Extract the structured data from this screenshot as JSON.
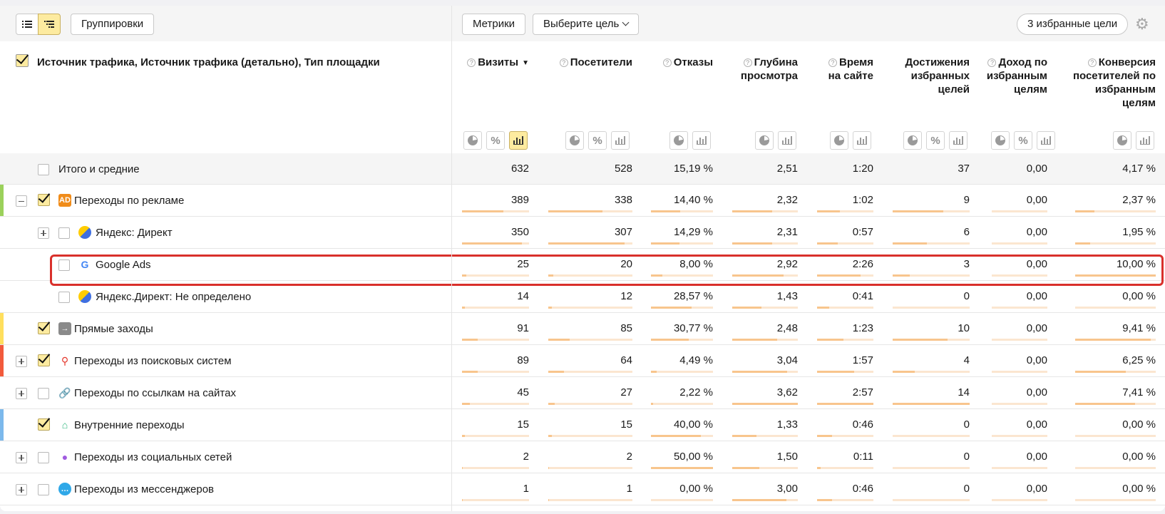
{
  "toolbar": {
    "groupings_label": "Группировки",
    "metrics_label": "Метрики",
    "goal_select_label": "Выберите цель",
    "favorite_goals_label": "3 избранные цели"
  },
  "table": {
    "dimension_title": "Источник трафика, Источник трафика (детально), Тип площадки",
    "columns": [
      {
        "id": "visits",
        "label": "Визиты",
        "sorted": true
      },
      {
        "id": "visitors",
        "label": "Посетители"
      },
      {
        "id": "bounce",
        "label": "Отказы"
      },
      {
        "id": "depth",
        "label": "Глубина просмотра"
      },
      {
        "id": "time",
        "label": "Время на сайте"
      },
      {
        "id": "goals",
        "label": "Достижения избранных целей"
      },
      {
        "id": "revenue",
        "label": "Доход по избранным целям"
      },
      {
        "id": "conversion",
        "label": "Конверсия посетителей по избранным целям"
      }
    ],
    "rows": [
      {
        "name": "Итого и средние",
        "values": [
          "632",
          "528",
          "15,19 %",
          "2,51",
          "1:20",
          "37",
          "0,00",
          "4,17 %"
        ],
        "bars": null
      },
      {
        "name": "Переходы по рекламе",
        "icon": "ad-icon",
        "values": [
          "389",
          "338",
          "14,40 %",
          "2,32",
          "1:02",
          "9",
          "0,00",
          "2,37 %"
        ],
        "bars": [
          0.62,
          0.64,
          0.47,
          0.61,
          0.4,
          0.66,
          0,
          0.24
        ]
      },
      {
        "name": "Яндекс: Директ",
        "icon": "yandex-direct-icon",
        "values": [
          "350",
          "307",
          "14,29 %",
          "2,31",
          "0:57",
          "6",
          "0,00",
          "1,95 %"
        ],
        "bars": [
          0.89,
          0.91,
          0.46,
          0.61,
          0.37,
          0.44,
          0,
          0.19
        ]
      },
      {
        "name": "Google Ads",
        "icon": "google-icon",
        "values": [
          "25",
          "20",
          "8,00 %",
          "2,92",
          "2:26",
          "3",
          "0,00",
          "10,00 %"
        ],
        "bars": [
          0.06,
          0.06,
          0.18,
          0.78,
          0.77,
          0.22,
          0,
          1.0
        ]
      },
      {
        "name": "Яндекс.Директ: Не определено",
        "icon": "yandex-direct-icon",
        "values": [
          "14",
          "12",
          "28,57 %",
          "1,43",
          "0:41",
          "0",
          "0,00",
          "0,00 %"
        ],
        "bars": [
          0.04,
          0.04,
          0.66,
          0.45,
          0.22,
          0,
          0,
          0
        ]
      },
      {
        "name": "Прямые заходы",
        "icon": "arrow-right-icon",
        "values": [
          "91",
          "85",
          "30,77 %",
          "2,48",
          "1:23",
          "10",
          "0,00",
          "9,41 %"
        ],
        "bars": [
          0.23,
          0.25,
          0.61,
          0.68,
          0.47,
          0.71,
          0,
          0.94
        ]
      },
      {
        "name": "Переходы из поисковых систем",
        "icon": "search-icon",
        "values": [
          "89",
          "64",
          "4,49 %",
          "3,04",
          "1:57",
          "4",
          "0,00",
          "6,25 %"
        ],
        "bars": [
          0.23,
          0.19,
          0.09,
          0.84,
          0.66,
          0.29,
          0,
          0.63
        ]
      },
      {
        "name": "Переходы по ссылкам на сайтах",
        "icon": "link-icon",
        "values": [
          "45",
          "27",
          "2,22 %",
          "3,62",
          "2:57",
          "14",
          "0,00",
          "7,41 %"
        ],
        "bars": [
          0.12,
          0.08,
          0.04,
          1.0,
          1.0,
          1.0,
          0,
          0.74
        ]
      },
      {
        "name": "Внутренние переходы",
        "icon": "home-icon",
        "values": [
          "15",
          "15",
          "40,00 %",
          "1,33",
          "0:46",
          "0",
          "0,00",
          "0,00 %"
        ],
        "bars": [
          0.04,
          0.04,
          0.8,
          0.37,
          0.26,
          0,
          0,
          0
        ]
      },
      {
        "name": "Переходы из социальных сетей",
        "icon": "social-user-icon",
        "values": [
          "2",
          "2",
          "50,00 %",
          "1,50",
          "0:11",
          "0",
          "0,00",
          "0,00 %"
        ],
        "bars": [
          0.01,
          0.01,
          1.0,
          0.41,
          0.06,
          0,
          0,
          0
        ]
      },
      {
        "name": "Переходы из мессенджеров",
        "icon": "messenger-icon",
        "values": [
          "1",
          "1",
          "0,00 %",
          "3,00",
          "0:46",
          "0",
          "0,00",
          "0,00 %"
        ],
        "bars": [
          0.01,
          0.01,
          0,
          0.83,
          0.26,
          0,
          0,
          0
        ]
      }
    ]
  },
  "colors": {
    "accent_yellow": "#fdeba0",
    "bar_fill": "#f8c58d",
    "bar_track": "#fbe6d0",
    "highlight_red": "#d9302b",
    "stripe_ads": "#9bd15b",
    "stripe_direct": "#ffdf5d",
    "stripe_search": "#f25a3c",
    "stripe_internal": "#7cb9ec"
  }
}
